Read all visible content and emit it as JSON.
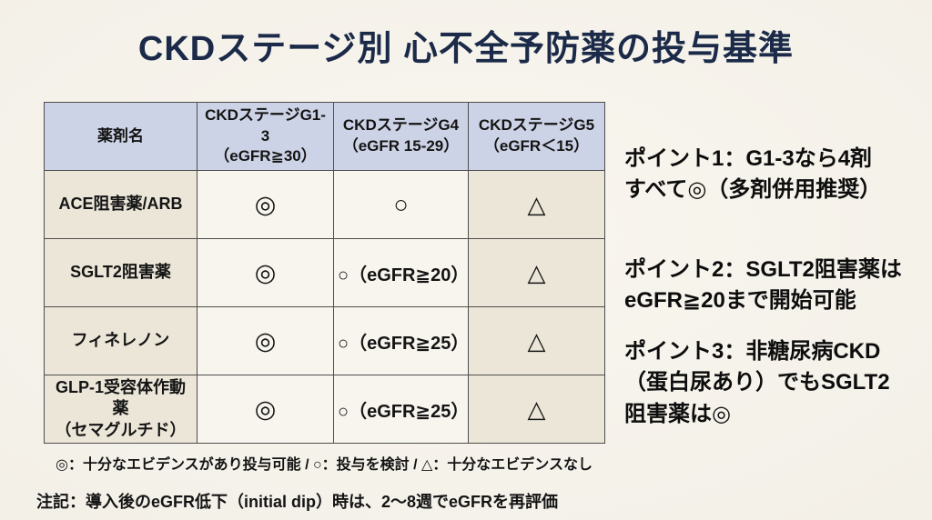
{
  "slide": {
    "title": "CKDステージ別 心不全予防薬の投与基準"
  },
  "table": {
    "headers": {
      "drug": "薬剤名",
      "g13": "CKDステージG1-3\n（eGFR≧30）",
      "g4": "CKDステージG4\n（eGFR 15-29）",
      "g5": "CKDステージG5\n（eGFR＜15）"
    },
    "rows": [
      {
        "drug": "ACE阻害薬/ARB",
        "g13": "◎",
        "g4": "○",
        "g5": "△"
      },
      {
        "drug": "SGLT2阻害薬",
        "g13": "◎",
        "g4": "○（eGFR≧20）",
        "g5": "△"
      },
      {
        "drug": "フィネレノン",
        "g13": "◎",
        "g4": "○（eGFR≧25）",
        "g5": "△"
      },
      {
        "drug": "GLP-1受容体作動薬\n（セマグルチド）",
        "g13": "◎",
        "g4": "○（eGFR≧25）",
        "g5": "△"
      }
    ]
  },
  "points": [
    "ポイント1：G1-3なら4剤\nすべて◎（多剤併用推奨）",
    "ポイント2：SGLT2阻害薬は\neGFR≧20まで開始可能",
    "ポイント3：非糖尿病CKD\n（蛋白尿あり）でもSGLT2\n阻害薬は◎"
  ],
  "legend": "◎：十分なエビデンスがあり投与可能 / ○：投与を検討 / △：十分なエビデンスなし",
  "note": "注記：導入後のeGFR低下（initial dip）時は、2〜8週でeGFRを再評価",
  "colors": {
    "title": "#1b2a48",
    "header_bg": "#cdd3e6",
    "row_label_bg": "#ebe6d8",
    "cell_bg": "#f8f5ee",
    "g5_cell_bg": "#ebe6d8",
    "border": "#4d4d4d",
    "background": "#f3f0e8"
  }
}
